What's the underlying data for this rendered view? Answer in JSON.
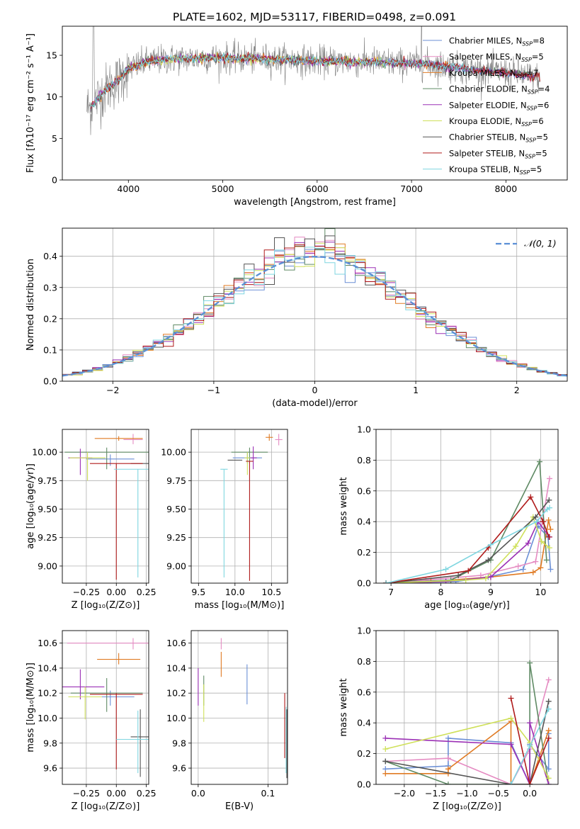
{
  "figure": {
    "title": "PLATE=1602, MJD=53117, FIBERID=0498, z=0.091"
  },
  "chart_data": [
    {
      "id": "spectrum",
      "type": "line",
      "xlabel": "wavelength [Angstrom, rest frame]",
      "ylabel": "Flux [fλ10⁻¹⁷ erg cm⁻² s⁻¹ A⁻¹]",
      "xlim": [
        3300,
        8650
      ],
      "ylim": [
        0,
        18.5
      ],
      "xticks": [
        4000,
        5000,
        6000,
        7000,
        8000
      ],
      "yticks": [
        0,
        5,
        10,
        15
      ],
      "legend_position": "upper-right",
      "data_continuum": {
        "x": [
          3600,
          3700,
          3800,
          3900,
          4000,
          4200,
          4400,
          4600,
          4800,
          5000,
          5200,
          5400,
          5600,
          5800,
          6000,
          6200,
          6400,
          6600,
          6800,
          7000,
          7200,
          7400,
          7600,
          7800,
          8000,
          8200,
          8350
        ],
        "y": [
          8.7,
          10.2,
          11.3,
          12.0,
          13.4,
          14.2,
          14.5,
          14.6,
          14.7,
          14.7,
          14.6,
          14.6,
          14.5,
          14.4,
          14.3,
          14.3,
          14.2,
          14.2,
          14.1,
          14.0,
          13.9,
          13.6,
          13.3,
          13.1,
          12.9,
          12.6,
          12.3
        ]
      },
      "series": [
        {
          "name": "Chabrier MILES, N_SSP=8",
          "color": "#6b8fd6"
        },
        {
          "name": "Salpeter MILES, N_SSP=5",
          "color": "#e58bc2"
        },
        {
          "name": "Kroupa MILES, N_SSP=7",
          "color": "#e07b24"
        },
        {
          "name": "Chabrier ELODIE, N_SSP=4",
          "color": "#5f8a64"
        },
        {
          "name": "Salpeter ELODIE, N_SSP=6",
          "color": "#9b30b5"
        },
        {
          "name": "Kroupa ELODIE, N_SSP=6",
          "color": "#cfe05a"
        },
        {
          "name": "Chabrier STELIB, N_SSP=5",
          "color": "#555555"
        },
        {
          "name": "Salpeter STELIB, N_SSP=5",
          "color": "#b01b1b"
        },
        {
          "name": "Kroupa STELIB, N_SSP=5",
          "color": "#7fd6e0"
        }
      ]
    },
    {
      "id": "residuals",
      "type": "line",
      "xlabel": "(data-model)/error",
      "ylabel": "Normed distribution",
      "xlim": [
        -2.5,
        2.5
      ],
      "ylim": [
        0,
        0.49
      ],
      "xticks": [
        -2,
        -1,
        0,
        1,
        2
      ],
      "yticks": [
        0.0,
        0.1,
        0.2,
        0.3,
        0.4
      ],
      "grid": true,
      "legend_position": "upper-right",
      "reference_curve": {
        "name": "𝒩(0, 1)",
        "color": "#5b8fd6",
        "mean": 0,
        "sigma": 1
      }
    },
    {
      "id": "age-vs-Z",
      "type": "scatter",
      "xlabel": "Z [log₁₀(Z/Z⊙)]",
      "ylabel": "age  [log₁₀(age/yr)]",
      "xlim": [
        -0.45,
        0.27
      ],
      "ylim": [
        8.85,
        10.2
      ],
      "xticks": [
        -0.25,
        0.0,
        0.25
      ],
      "yticks": [
        9.0,
        9.25,
        9.5,
        9.75,
        10.0
      ],
      "grid": true,
      "points": [
        {
          "color": "#6b8fd6",
          "x": -0.05,
          "xerr": 0.2,
          "y": 9.94,
          "yerr": [
            0.06,
            0.04
          ]
        },
        {
          "color": "#e58bc2",
          "x": 0.14,
          "xerr": 0.08,
          "y": 10.11,
          "yerr": [
            0.04,
            0.05
          ]
        },
        {
          "color": "#e07b24",
          "x": 0.02,
          "xerr": 0.2,
          "y": 10.12,
          "yerr": [
            0.02,
            0.02
          ]
        },
        {
          "color": "#5f8a64",
          "x": -0.08,
          "xerr": 0.35,
          "y": 10.0,
          "yerr": [
            0.15,
            0.04
          ]
        },
        {
          "color": "#9b30b5",
          "x": -0.3,
          "xerr": 0.1,
          "y": 9.95,
          "yerr": [
            0.15,
            0.08
          ]
        },
        {
          "color": "#cfe05a",
          "x": -0.24,
          "xerr": 0.15,
          "y": 9.95,
          "yerr": [
            0.2,
            0.05
          ]
        },
        {
          "color": "#555555",
          "x": 0.2,
          "xerr": 0.08,
          "y": 9.9,
          "yerr": [
            0.0,
            0.0
          ]
        },
        {
          "color": "#b01b1b",
          "x": 0.0,
          "xerr": 0.22,
          "y": 9.9,
          "yerr": [
            1.02,
            0.0
          ]
        },
        {
          "color": "#7fd6e0",
          "x": 0.18,
          "xerr": 0.2,
          "y": 9.85,
          "yerr": [
            0.95,
            0.0
          ]
        }
      ]
    },
    {
      "id": "age-vs-mass",
      "type": "scatter",
      "xlabel": "mass [log₁₀(M/M⊙)]",
      "xlim": [
        9.4,
        10.72
      ],
      "ylim": [
        8.85,
        10.2
      ],
      "xticks": [
        9.5,
        10.0,
        10.5
      ],
      "yticks": [
        9.0,
        9.25,
        9.5,
        9.75,
        10.0
      ],
      "grid": true,
      "points": [
        {
          "color": "#6b8fd6",
          "x": 10.17,
          "xerr": 0.2,
          "y": 9.95,
          "yerr": [
            0.05,
            0.05
          ]
        },
        {
          "color": "#e58bc2",
          "x": 10.6,
          "xerr": 0.05,
          "y": 10.11,
          "yerr": [
            0.05,
            0.05
          ]
        },
        {
          "color": "#e07b24",
          "x": 10.47,
          "xerr": 0.05,
          "y": 10.13,
          "yerr": [
            0.03,
            0.03
          ]
        },
        {
          "color": "#5f8a64",
          "x": 10.2,
          "xerr": 0.25,
          "y": 10.0,
          "yerr": [
            0.1,
            0.04
          ]
        },
        {
          "color": "#9b30b5",
          "x": 10.25,
          "xerr": 0.05,
          "y": 9.95,
          "yerr": [
            0.1,
            0.1
          ]
        },
        {
          "color": "#cfe05a",
          "x": 10.17,
          "xerr": 0.04,
          "y": 9.95,
          "yerr": [
            0.15,
            0.05
          ]
        },
        {
          "color": "#555555",
          "x": 10.0,
          "xerr": 0.1,
          "y": 9.93,
          "yerr": [
            0.0,
            0.0
          ]
        },
        {
          "color": "#b01b1b",
          "x": 10.2,
          "xerr": 0.05,
          "y": 9.92,
          "yerr": [
            1.05,
            0.0
          ]
        },
        {
          "color": "#7fd6e0",
          "x": 9.85,
          "xerr": 0.05,
          "y": 9.85,
          "yerr": [
            0.95,
            0.0
          ]
        }
      ]
    },
    {
      "id": "mass-weight-vs-age",
      "type": "line",
      "xlabel": "age  [log₁₀(age/yr)]",
      "ylabel": "mass weight",
      "xlim": [
        6.7,
        10.35
      ],
      "ylim": [
        0,
        1.0
      ],
      "xticks": [
        7,
        8,
        9,
        10
      ],
      "yticks": [
        0.0,
        0.2,
        0.4,
        0.6,
        0.8,
        1.0
      ],
      "grid": true,
      "series": [
        {
          "color": "#6b8fd6",
          "x": [
            6.9,
            8.3,
            8.95,
            9.65,
            9.95,
            10.15,
            10.2
          ],
          "y": [
            0.0,
            0.01,
            0.04,
            0.09,
            0.37,
            0.3,
            0.09
          ]
        },
        {
          "color": "#e58bc2",
          "x": [
            6.9,
            7.7,
            8.8,
            9.55,
            9.9,
            10.18
          ],
          "y": [
            0.0,
            0.02,
            0.05,
            0.11,
            0.14,
            0.68
          ]
        },
        {
          "color": "#e07b24",
          "x": [
            6.9,
            7.8,
            9.0,
            9.85,
            10.0,
            10.16,
            10.2
          ],
          "y": [
            0.0,
            0.01,
            0.04,
            0.07,
            0.1,
            0.41,
            0.35
          ]
        },
        {
          "color": "#5f8a64",
          "x": [
            6.9,
            8.2,
            9.0,
            9.98,
            10.12
          ],
          "y": [
            0.0,
            0.02,
            0.15,
            0.79,
            0.15
          ]
        },
        {
          "color": "#9b30b5",
          "x": [
            6.9,
            8.1,
            9.0,
            9.75,
            9.95,
            10.18
          ],
          "y": [
            0.0,
            0.01,
            0.04,
            0.26,
            0.4,
            0.3
          ]
        },
        {
          "color": "#cfe05a",
          "x": [
            6.9,
            8.5,
            8.9,
            9.5,
            9.85,
            10.02,
            10.18
          ],
          "y": [
            0.0,
            0.02,
            0.03,
            0.24,
            0.43,
            0.27,
            0.23
          ]
        },
        {
          "color": "#555555",
          "x": [
            6.9,
            8.35,
            8.95,
            9.9,
            10.17
          ],
          "y": [
            0.0,
            0.05,
            0.15,
            0.43,
            0.54
          ]
        },
        {
          "color": "#b01b1b",
          "x": [
            6.9,
            8.55,
            8.95,
            9.8,
            10.05,
            10.17
          ],
          "y": [
            0.0,
            0.08,
            0.23,
            0.56,
            0.4,
            0.3
          ]
        },
        {
          "color": "#7fd6e0",
          "x": [
            6.9,
            8.1,
            9.0,
            9.92,
            10.13,
            10.18
          ],
          "y": [
            0.0,
            0.09,
            0.25,
            0.4,
            0.48,
            0.49
          ]
        }
      ]
    },
    {
      "id": "mass-vs-Z",
      "type": "scatter",
      "xlabel": "Z [log₁₀(Z/Z⊙)]",
      "ylabel": "mass [log₁₀(M/M⊙)]",
      "xlim": [
        -0.45,
        0.27
      ],
      "ylim": [
        9.47,
        10.7
      ],
      "xticks": [
        -0.25,
        0.0,
        0.25
      ],
      "yticks": [
        9.6,
        9.8,
        10.0,
        10.2,
        10.4,
        10.6
      ],
      "grid": true,
      "points": [
        {
          "color": "#6b8fd6",
          "x": -0.05,
          "xerr": 0.2,
          "y": 10.17,
          "yerr": [
            0.07,
            0.05
          ]
        },
        {
          "color": "#e58bc2",
          "x": 0.14,
          "xerr": 0.55,
          "y": 10.6,
          "yerr": [
            0.05,
            0.04
          ]
        },
        {
          "color": "#e07b24",
          "x": 0.02,
          "xerr": 0.18,
          "y": 10.47,
          "yerr": [
            0.04,
            0.05
          ]
        },
        {
          "color": "#5f8a64",
          "x": -0.08,
          "xerr": 0.3,
          "y": 10.2,
          "yerr": [
            0.15,
            0.12
          ]
        },
        {
          "color": "#9b30b5",
          "x": -0.3,
          "xerr": 0.2,
          "y": 10.25,
          "yerr": [
            0.1,
            0.14
          ]
        },
        {
          "color": "#cfe05a",
          "x": -0.26,
          "xerr": 0.14,
          "y": 10.17,
          "yerr": [
            0.18,
            0.08
          ]
        },
        {
          "color": "#555555",
          "x": 0.2,
          "xerr": 0.08,
          "y": 9.85,
          "yerr": [
            0.32,
            0.22
          ]
        },
        {
          "color": "#b01b1b",
          "x": 0.0,
          "xerr": 0.22,
          "y": 10.19,
          "yerr": [
            0.6,
            0.01
          ]
        },
        {
          "color": "#7fd6e0",
          "x": 0.18,
          "xerr": 0.18,
          "y": 9.83,
          "yerr": [
            0.27,
            0.23
          ]
        }
      ]
    },
    {
      "id": "mass-vs-ebv",
      "type": "scatter",
      "xlabel": "E(B-V)",
      "xlim": [
        -0.01,
        0.128
      ],
      "ylim": [
        9.47,
        10.7
      ],
      "xticks": [
        0.0,
        0.1
      ],
      "yticks": [
        9.6,
        9.8,
        10.0,
        10.2,
        10.4,
        10.6
      ],
      "grid": true,
      "points": [
        {
          "color": "#6b8fd6",
          "x": 0.07,
          "y": 10.27,
          "yerr": [
            0.16,
            0.16
          ]
        },
        {
          "color": "#e58bc2",
          "x": 0.033,
          "y": 10.6,
          "yerr": [
            0.05,
            0.04
          ]
        },
        {
          "color": "#e07b24",
          "x": 0.033,
          "y": 10.43,
          "yerr": [
            0.1,
            0.1
          ]
        },
        {
          "color": "#5f8a64",
          "x": 0.008,
          "y": 10.22,
          "yerr": [
            0.12,
            0.12
          ]
        },
        {
          "color": "#9b30b5",
          "x": 0.0,
          "y": 10.25,
          "yerr": [
            0.15,
            0.15
          ]
        },
        {
          "color": "#cfe05a",
          "x": 0.008,
          "y": 10.12,
          "yerr": [
            0.15,
            0.15
          ]
        },
        {
          "color": "#555555",
          "x": 0.127,
          "y": 9.8,
          "yerr": [
            0.28,
            0.27
          ]
        },
        {
          "color": "#b01b1b",
          "x": 0.124,
          "y": 9.94,
          "yerr": [
            0.26,
            0.26
          ]
        },
        {
          "color": "#7fd6e0",
          "x": 0.126,
          "y": 9.83,
          "yerr": [
            0.27,
            0.26
          ]
        }
      ]
    },
    {
      "id": "mass-weight-vs-Z",
      "type": "line",
      "xlabel": "Z [log₁₀(Z/Z⊙)]",
      "ylabel": "mass weight",
      "xlim": [
        -2.45,
        0.45
      ],
      "ylim": [
        0,
        1.0
      ],
      "xticks": [
        -2.0,
        -1.5,
        -1.0,
        -0.5,
        0.0
      ],
      "yticks": [
        0.0,
        0.2,
        0.4,
        0.6,
        0.8,
        1.0
      ],
      "grid": true,
      "series": [
        {
          "color": "#6b8fd6",
          "x": [
            -2.3,
            -1.3,
            -1.3,
            -0.3,
            0.0,
            0.0,
            0.3,
            0.3
          ],
          "y": [
            0.1,
            0.12,
            0.3,
            0.27,
            0.0,
            0.26,
            0.1,
            0.33
          ]
        },
        {
          "color": "#e58bc2",
          "x": [
            -2.3,
            -1.3,
            -0.3,
            0.0,
            0.3
          ],
          "y": [
            0.15,
            0.17,
            0.0,
            0.23,
            0.68
          ]
        },
        {
          "color": "#e07b24",
          "x": [
            -2.3,
            -1.3,
            -1.3,
            -0.3,
            -0.3,
            0.0,
            0.3
          ],
          "y": [
            0.07,
            0.07,
            0.1,
            0.41,
            0.0,
            0.0,
            0.35
          ]
        },
        {
          "color": "#5f8a64",
          "x": [
            -2.3,
            -1.3,
            -0.3,
            0.0,
            0.0,
            0.3
          ],
          "y": [
            0.15,
            0.0,
            0.0,
            0.0,
            0.79,
            0.0
          ]
        },
        {
          "color": "#9b30b5",
          "x": [
            -2.3,
            -0.3,
            0.0,
            0.0,
            0.3
          ],
          "y": [
            0.3,
            0.26,
            0.0,
            0.4,
            0.0
          ]
        },
        {
          "color": "#cfe05a",
          "x": [
            -2.3,
            -0.3,
            0.0,
            0.3
          ],
          "y": [
            0.23,
            0.43,
            0.27,
            0.04
          ]
        },
        {
          "color": "#555555",
          "x": [
            -2.3,
            -0.3,
            0.0,
            0.3
          ],
          "y": [
            0.15,
            0.0,
            0.0,
            0.54
          ]
        },
        {
          "color": "#b01b1b",
          "x": [
            -0.3,
            0.0,
            0.0,
            0.3
          ],
          "y": [
            0.56,
            0.0,
            0.0,
            0.3
          ]
        },
        {
          "color": "#7fd6e0",
          "x": [
            -0.3,
            0.0,
            0.3
          ],
          "y": [
            0.0,
            0.25,
            0.49
          ]
        }
      ]
    }
  ]
}
